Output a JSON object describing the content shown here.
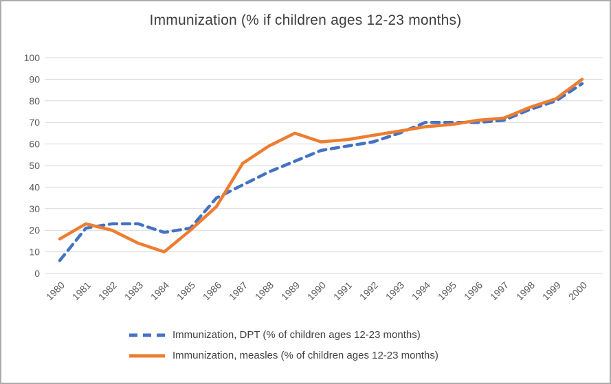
{
  "window": {
    "background": "#ffffff",
    "border_color": "#ababab"
  },
  "chart_data": {
    "type": "line",
    "title": "Immunization (% if children ages 12-23 months)",
    "categories": [
      "1980",
      "1981",
      "1982",
      "1983",
      "1984",
      "1985",
      "1986",
      "1987",
      "1988",
      "1989",
      "1990",
      "1991",
      "1992",
      "1993",
      "1994",
      "1995",
      "1996",
      "1997",
      "1998",
      "1999",
      "2000"
    ],
    "series": [
      {
        "name": "Immunization, DPT (% of children ages 12-23 months)",
        "color": "#4472C4",
        "style": "dashed",
        "values": [
          6,
          21,
          23,
          23,
          19,
          21,
          35,
          41,
          47,
          52,
          57,
          59,
          61,
          65,
          70,
          70,
          70,
          71,
          76,
          80,
          88
        ]
      },
      {
        "name": "Immunization, measles (% of children ages 12-23 months)",
        "color": "#ED7D31",
        "style": "solid",
        "values": [
          16,
          23,
          20,
          14,
          10,
          20,
          31,
          51,
          59,
          65,
          61,
          62,
          64,
          66,
          68,
          69,
          71,
          72,
          77,
          81,
          90
        ]
      }
    ],
    "ylim": [
      0,
      100
    ],
    "y_tick_step": 10,
    "y_tick_labels": [
      "0",
      "10",
      "20",
      "30",
      "40",
      "50",
      "60",
      "70",
      "80",
      "90",
      "100"
    ],
    "grid": true,
    "gridline_color": "#D9D9D9",
    "tick_label_color": "#595959",
    "title_color": "#404040",
    "legend_position": "bottom"
  }
}
